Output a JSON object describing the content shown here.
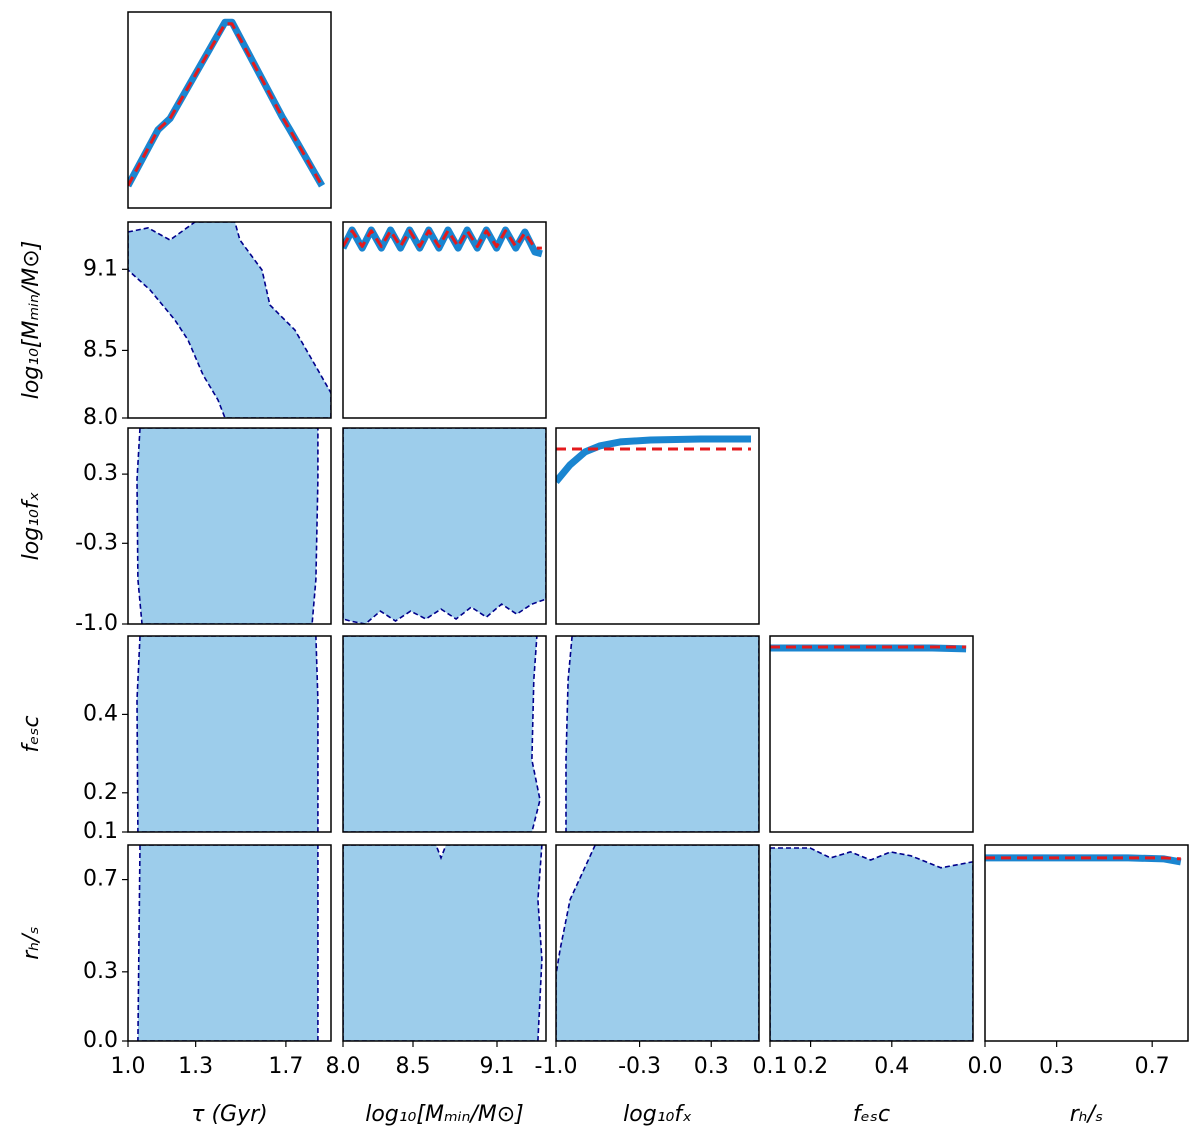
{
  "chart_data": [
    {
      "type": "line",
      "ylim": [
        0,
        1
      ],
      "xlim": [
        1.0,
        1.9
      ],
      "x": [
        1.0,
        1.133,
        1.186,
        1.43,
        1.461,
        1.683,
        1.718,
        1.86
      ],
      "series": [
        {
          "color": "#1a85d0",
          "style": "solid",
          "values": [
            0.114,
            0.399,
            0.456,
            0.948,
            0.948,
            0.466,
            0.399,
            0.114
          ]
        },
        {
          "color": "#e41a1c",
          "style": "dashed",
          "values": [
            0.114,
            0.399,
            0.456,
            0.94,
            0.94,
            0.466,
            0.399,
            0.114
          ]
        }
      ]
    },
    {
      "type": "contour",
      "xlim": [
        1.0,
        1.9
      ],
      "ylim": [
        8.0,
        9.45
      ],
      "ylabel": "log₁₀[Mₘᵢₙ/M⊙]",
      "yticks": [
        {
          "value": 8,
          "label": "8.0"
        },
        8.5,
        9.1
      ],
      "contour": {
        "x": [
          1.0,
          1.089,
          1.186,
          1.297,
          1.474,
          1.496,
          1.594,
          1.629,
          1.74,
          1.842,
          1.9,
          1.9,
          1.43,
          1.399,
          1.333,
          1.266,
          1.208,
          1.098,
          1.0
        ],
        "y": [
          9.376,
          9.406,
          9.317,
          9.45,
          9.45,
          9.317,
          9.095,
          8.836,
          8.651,
          8.355,
          8.185,
          8.0,
          8.0,
          8.133,
          8.318,
          8.577,
          8.725,
          8.947,
          9.095
        ]
      }
    },
    {
      "type": "line",
      "ylim": [
        0,
        1
      ],
      "xlim": [
        8.0,
        9.45
      ],
      "x": [
        8.0,
        8.065,
        8.137,
        8.202,
        8.274,
        8.339,
        8.411,
        8.476,
        8.548,
        8.613,
        8.685,
        8.75,
        8.822,
        8.887,
        8.959,
        9.024,
        9.097,
        9.161,
        9.234,
        9.299,
        9.371,
        9.421
      ],
      "series": [
        {
          "color": "#1a85d0",
          "style": "solid",
          "values": [
            0.867,
            0.959,
            0.867,
            0.959,
            0.867,
            0.959,
            0.867,
            0.959,
            0.867,
            0.959,
            0.867,
            0.959,
            0.867,
            0.959,
            0.867,
            0.959,
            0.867,
            0.959,
            0.867,
            0.949,
            0.847,
            0.837
          ]
        },
        {
          "color": "#e41a1c",
          "style": "dashed",
          "values": [
            0.875,
            0.955,
            0.875,
            0.955,
            0.875,
            0.955,
            0.875,
            0.955,
            0.875,
            0.955,
            0.875,
            0.955,
            0.875,
            0.955,
            0.875,
            0.955,
            0.875,
            0.955,
            0.875,
            0.945,
            0.867,
            0.867
          ]
        }
      ]
    },
    {
      "type": "contour",
      "xlim": [
        1.0,
        1.9
      ],
      "ylim": [
        -1.0,
        0.7
      ],
      "ylabel": "log₁₀fₓ",
      "yticks": [
        {
          "value": -1,
          "label": "-1.0"
        },
        -0.3,
        0.3
      ],
      "contour": {
        "x": [
          1.053,
          1.04,
          1.044,
          1.062,
          1.816,
          1.833,
          1.842,
          1.842
        ],
        "y": [
          0.7,
          0.251,
          -0.612,
          -1.0,
          -1.0,
          -0.612,
          0.251,
          0.7
        ]
      }
    },
    {
      "type": "contour",
      "xlim": [
        8.0,
        9.45
      ],
      "ylim": [
        -1.0,
        0.7
      ],
      "contour": {
        "x": [
          8.0,
          9.45,
          9.45,
          9.349,
          9.241,
          9.133,
          9.024,
          8.916,
          8.808,
          8.7,
          8.592,
          8.483,
          8.375,
          8.267,
          8.159,
          8.05,
          8.0
        ],
        "y": [
          0.7,
          0.7,
          -0.784,
          -0.827,
          -0.914,
          -0.827,
          -0.94,
          -0.853,
          -0.957,
          -0.871,
          -0.957,
          -0.888,
          -0.974,
          -0.888,
          -1.0,
          -0.974,
          -0.957
        ]
      }
    },
    {
      "type": "line",
      "ylim": [
        0,
        1
      ],
      "xlim": [
        -1.0,
        0.7
      ],
      "x": [
        -1.0,
        -0.882,
        -0.756,
        -0.63,
        -0.462,
        -0.209,
        0.212,
        0.633
      ],
      "series": [
        {
          "color": "#1a85d0",
          "style": "solid",
          "values": [
            0.726,
            0.812,
            0.878,
            0.909,
            0.929,
            0.939,
            0.944,
            0.944
          ]
        },
        {
          "color": "#e41a1c",
          "style": "dashed",
          "values": [
            0.893,
            0.893,
            0.893,
            0.893,
            0.893,
            0.893,
            0.893,
            0.893
          ]
        }
      ]
    },
    {
      "type": "contour",
      "xlim": [
        1.0,
        1.9
      ],
      "ylim": [
        0.1,
        0.6
      ],
      "ylabel": "fₑₛc",
      "yticks": [
        0.1,
        0.2,
        0.4
      ],
      "contour": {
        "x": [
          1.053,
          1.04,
          1.044,
          1.842,
          1.842,
          1.833
        ],
        "y": [
          0.6,
          0.437,
          0.1,
          0.1,
          0.437,
          0.6
        ]
      }
    },
    {
      "type": "contour",
      "xlim": [
        8.0,
        9.45
      ],
      "ylim": [
        0.1,
        0.6
      ],
      "contour": {
        "x": [
          8.0,
          9.385,
          9.363,
          9.349,
          9.407,
          9.349,
          8.0
        ],
        "y": [
          0.6,
          0.6,
          0.488,
          0.284,
          0.182,
          0.1,
          0.1
        ]
      }
    },
    {
      "type": "contour",
      "xlim": [
        -1.0,
        0.7
      ],
      "ylim": [
        0.1,
        0.6
      ],
      "contour": {
        "x": [
          -0.865,
          -0.899,
          -0.916,
          -0.916,
          0.7,
          0.7
        ],
        "y": [
          0.6,
          0.488,
          0.284,
          0.1,
          0.1,
          0.6
        ]
      }
    },
    {
      "type": "line",
      "ylim": [
        0,
        1
      ],
      "xlim": [
        0.1,
        0.6
      ],
      "x": [
        0.1,
        0.3,
        0.5,
        0.583
      ],
      "series": [
        {
          "color": "#1a85d0",
          "style": "solid",
          "values": [
            0.939,
            0.939,
            0.939,
            0.934
          ]
        },
        {
          "color": "#e41a1c",
          "style": "dashed",
          "values": [
            0.944,
            0.944,
            0.944,
            0.944
          ]
        }
      ]
    },
    {
      "type": "contour",
      "xlim": [
        1.0,
        1.9
      ],
      "ylim": [
        0.0,
        0.85
      ],
      "ylabel": "rₕ/ₛ",
      "xlabel": "τ (Gyr)",
      "yticks": [
        {
          "value": 0,
          "label": "0.0"
        },
        0.3,
        0.7
      ],
      "xticks": [
        {
          "value": 1,
          "label": "1.0"
        },
        1.3,
        1.7
      ],
      "contour": {
        "x": [
          1.053,
          1.044,
          1.842,
          1.842
        ],
        "y": [
          0.85,
          0.0,
          0.0,
          0.85
        ]
      }
    },
    {
      "type": "contour",
      "xlim": [
        8.0,
        9.45
      ],
      "ylim": [
        0.0,
        0.85
      ],
      "xlabel": "log₁₀[Mₘᵢₙ/M⊙]",
      "xticks": [
        {
          "value": 8,
          "label": "8.0"
        },
        8.5,
        9.1
      ],
      "contour": {
        "x": [
          8.0,
          8.664,
          8.7,
          8.736,
          9.421,
          9.392,
          9.421,
          9.392,
          8.0
        ],
        "y": [
          0.85,
          0.85,
          0.794,
          0.85,
          0.85,
          0.613,
          0.354,
          0.0,
          0.0
        ]
      }
    },
    {
      "type": "contour",
      "xlim": [
        -1.0,
        0.7
      ],
      "ylim": [
        0.0,
        0.85
      ],
      "xlabel": "log₁₀fₓ",
      "xticks": [
        {
          "value": -1,
          "label": "-1.0"
        },
        -0.3,
        0.3
      ],
      "contour": {
        "x": [
          -0.672,
          -0.882,
          -0.966,
          -1.0,
          -1.0,
          0.7,
          0.7
        ],
        "y": [
          0.85,
          0.613,
          0.397,
          0.289,
          0.0,
          0.0,
          0.85
        ]
      }
    },
    {
      "type": "contour",
      "xlim": [
        0.1,
        0.6
      ],
      "ylim": [
        0.0,
        0.85
      ],
      "xlabel": "fₑₛc",
      "xticks": [
        0.1,
        0.2,
        0.4
      ],
      "contour": {
        "x": [
          0.1,
          0.199,
          0.249,
          0.298,
          0.348,
          0.397,
          0.447,
          0.521,
          0.6,
          0.6,
          0.1
        ],
        "y": [
          0.837,
          0.837,
          0.794,
          0.82,
          0.785,
          0.82,
          0.803,
          0.751,
          0.777,
          0.0,
          0.0
        ]
      }
    },
    {
      "type": "line",
      "ylim": [
        0,
        1
      ],
      "xlim": [
        0.0,
        0.85
      ],
      "xlabel": "rₕ/ₛ",
      "xticks": [
        {
          "value": 0,
          "label": "0.0"
        },
        0.3,
        0.7
      ],
      "x": [
        0.0,
        0.3,
        0.6,
        0.75,
        0.82
      ],
      "series": [
        {
          "color": "#1a85d0",
          "style": "solid",
          "values": [
            0.934,
            0.934,
            0.934,
            0.929,
            0.914
          ]
        },
        {
          "color": "#e41a1c",
          "style": "dashed",
          "values": [
            0.934,
            0.934,
            0.934,
            0.934,
            0.929
          ]
        }
      ]
    }
  ]
}
